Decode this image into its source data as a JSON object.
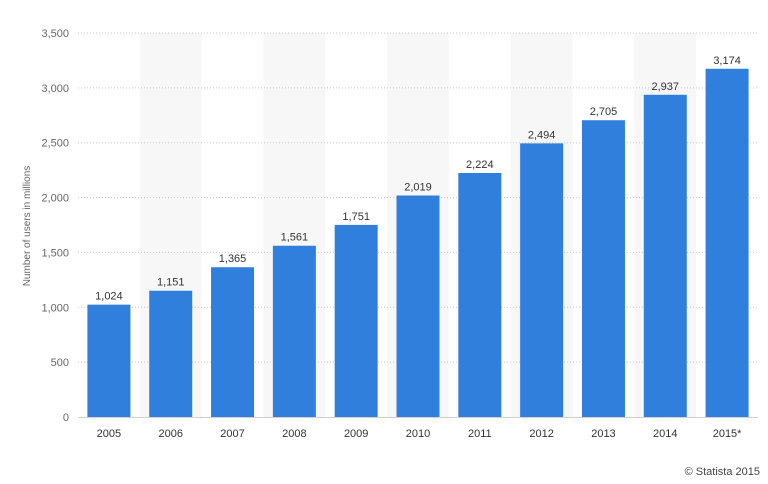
{
  "credit": "© Statista 2015",
  "colors": {
    "bar": "#307fdc",
    "band": "#f7f7f7",
    "grid": "#c8c8c8",
    "text": "#333333",
    "axis_text": "#666666"
  },
  "chart_data": {
    "type": "bar",
    "categories": [
      "2005",
      "2006",
      "2007",
      "2008",
      "2009",
      "2010",
      "2011",
      "2012",
      "2013",
      "2014",
      "2015*"
    ],
    "values": [
      1024,
      1151,
      1365,
      1561,
      1751,
      2019,
      2224,
      2494,
      2705,
      2937,
      3174
    ],
    "value_labels": [
      "1,024",
      "1,151",
      "1,365",
      "1,561",
      "1,751",
      "2,019",
      "2,224",
      "2,494",
      "2,705",
      "2,937",
      "3,174"
    ],
    "ylabel": "Number of users in millions",
    "xlabel": "",
    "ylim": [
      0,
      3500
    ],
    "yticks": [
      0,
      500,
      1000,
      1500,
      2000,
      2500,
      3000,
      3500
    ],
    "ytick_labels": [
      "0",
      "500",
      "1,000",
      "1,500",
      "2,000",
      "2,500",
      "3,000",
      "3,500"
    ],
    "grid": true,
    "alternating_bands": true
  }
}
